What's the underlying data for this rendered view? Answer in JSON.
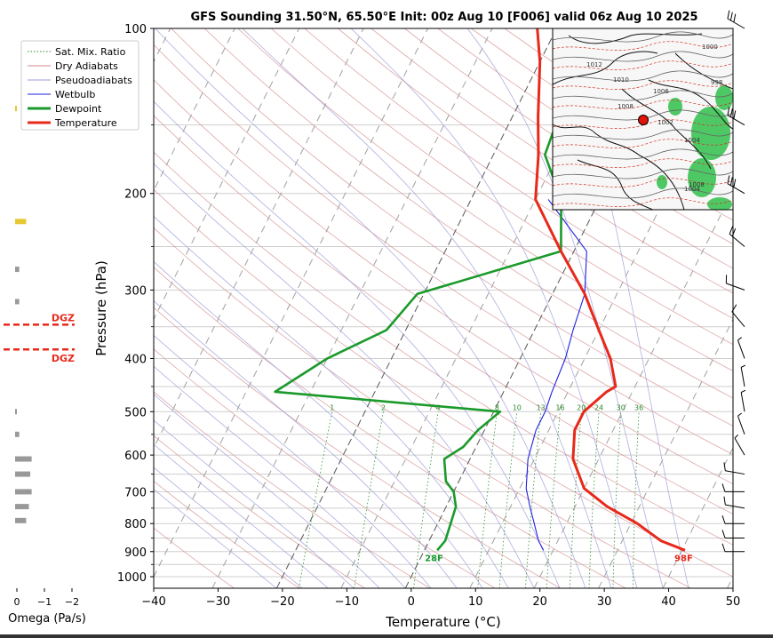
{
  "chart_data": {
    "type": "line",
    "title": "GFS Sounding 31.50°N, 65.50°E Init: 00z Aug 10 [F006] valid 06z Aug 10 2025",
    "xlabel": "Temperature (°C)",
    "ylabel": "Pressure (hPa)",
    "x_ticks": [
      -40,
      -30,
      -20,
      -10,
      0,
      10,
      20,
      30,
      40,
      50
    ],
    "x_tick_labels": [
      "−40",
      "−30",
      "−20",
      "−10",
      "0",
      "10",
      "20",
      "30",
      "40",
      "50"
    ],
    "y_ticks": [
      100,
      200,
      300,
      400,
      500,
      600,
      700,
      800,
      900,
      1000
    ],
    "y_tick_labels": [
      "100",
      "200",
      "300",
      "400",
      "500",
      "600",
      "700",
      "800",
      "900",
      "1000"
    ],
    "xlim": [
      -40,
      50
    ],
    "ylim": [
      1050,
      100
    ],
    "y_scale": "log",
    "grid": true,
    "legend_position": "top-left",
    "legend": [
      {
        "label": "Sat. Mix. Ratio",
        "color": "#2e8b2e",
        "style": "dotted"
      },
      {
        "label": "Dry Adiabats",
        "color": "#d48a8a",
        "style": "solid"
      },
      {
        "label": "Pseudoadiabats",
        "color": "#9a9ad8",
        "style": "solid"
      },
      {
        "label": "Wetbulb",
        "color": "#2020e0",
        "style": "solid"
      },
      {
        "label": "Dewpoint",
        "color": "#1a9a2a",
        "style": "thick"
      },
      {
        "label": "Temperature",
        "color": "#e8281a",
        "style": "thick"
      }
    ],
    "series": [
      {
        "name": "Temperature",
        "color": "#e8281a",
        "points": [
          [
            40.5,
            895
          ],
          [
            36,
            860
          ],
          [
            31,
            800
          ],
          [
            25,
            745
          ],
          [
            20,
            690
          ],
          [
            16,
            610
          ],
          [
            14,
            540
          ],
          [
            14,
            500
          ],
          [
            16,
            460
          ],
          [
            17,
            450
          ],
          [
            14,
            400
          ],
          [
            10,
            355
          ],
          [
            5,
            305
          ],
          [
            -2,
            255
          ],
          [
            -10,
            205
          ],
          [
            -13,
            170
          ],
          [
            -16,
            145
          ],
          [
            -20,
            115
          ],
          [
            -23,
            100
          ]
        ]
      },
      {
        "name": "Wetbulb",
        "color": "#2020e0",
        "points": [
          [
            18.5,
            895
          ],
          [
            17,
            860
          ],
          [
            15,
            800
          ],
          [
            13,
            745
          ],
          [
            11,
            690
          ],
          [
            9,
            610
          ],
          [
            8,
            540
          ],
          [
            8,
            500
          ],
          [
            7.5,
            460
          ],
          [
            7,
            400
          ],
          [
            6,
            355
          ],
          [
            5,
            305
          ],
          [
            2,
            255
          ],
          [
            -8,
            205
          ]
        ]
      },
      {
        "name": "Dewpoint",
        "color": "#1a9a2a",
        "points": [
          [
            2,
            895
          ],
          [
            2.5,
            860
          ],
          [
            2,
            800
          ],
          [
            1.5,
            745
          ],
          [
            0,
            700
          ],
          [
            -2,
            670
          ],
          [
            -4,
            610
          ],
          [
            -2,
            580
          ],
          [
            -1,
            540
          ],
          [
            1,
            500
          ],
          [
            -35.5,
            460
          ],
          [
            -30,
            400
          ],
          [
            -23,
            355
          ],
          [
            -21,
            305
          ],
          [
            -2,
            255
          ],
          [
            -6,
            205
          ],
          [
            -12,
            170
          ],
          [
            -13,
            140
          ],
          [
            -13,
            115
          ],
          [
            -14,
            100
          ]
        ]
      }
    ],
    "mixing_ratio_labels": [
      "1",
      "2",
      "4",
      "8",
      "10",
      "13",
      "16",
      "20",
      "24",
      "30",
      "36"
    ],
    "mixing_ratio_values": [
      1,
      2,
      4,
      8,
      10,
      13,
      16,
      20,
      24,
      30,
      36
    ],
    "surface_temp_label": "98F",
    "surface_dewpoint_label": "28F",
    "dgz_label": "DGZ",
    "dgz_pressures": [
      347,
      385
    ],
    "omega": {
      "xlabel": "Omega (Pa/s)",
      "ticks": [
        "0",
        "−1",
        "−2"
      ],
      "bars": [
        {
          "p": 225,
          "v": -0.4,
          "color": "#e6c830"
        },
        {
          "p": 275,
          "v": -0.15,
          "color": "#999999"
        },
        {
          "p": 315,
          "v": -0.15,
          "color": "#999999"
        },
        {
          "p": 500,
          "v": -0.05,
          "color": "#999999"
        },
        {
          "p": 550,
          "v": -0.15,
          "color": "#999999"
        },
        {
          "p": 610,
          "v": -0.6,
          "color": "#999999"
        },
        {
          "p": 650,
          "v": -0.55,
          "color": "#999999"
        },
        {
          "p": 700,
          "v": -0.6,
          "color": "#999999"
        },
        {
          "p": 745,
          "v": -0.5,
          "color": "#999999"
        },
        {
          "p": 790,
          "v": -0.4,
          "color": "#999999"
        },
        {
          "p": 140,
          "v": -0.05,
          "color": "#e6c830"
        }
      ]
    },
    "wind_barbs": [
      {
        "p": 100,
        "dir": 300,
        "kt": 30
      },
      {
        "p": 150,
        "dir": 300,
        "kt": 30
      },
      {
        "p": 200,
        "dir": 300,
        "kt": 30
      },
      {
        "p": 250,
        "dir": 310,
        "kt": 20
      },
      {
        "p": 300,
        "dir": 290,
        "kt": 10
      },
      {
        "p": 350,
        "dir": 320,
        "kt": 10
      },
      {
        "p": 400,
        "dir": 340,
        "kt": 5
      },
      {
        "p": 450,
        "dir": 350,
        "kt": 5
      },
      {
        "p": 500,
        "dir": 350,
        "kt": 5
      },
      {
        "p": 550,
        "dir": 340,
        "kt": 5
      },
      {
        "p": 600,
        "dir": 330,
        "kt": 5
      },
      {
        "p": 650,
        "dir": 280,
        "kt": 10
      },
      {
        "p": 700,
        "dir": 270,
        "kt": 10
      },
      {
        "p": 750,
        "dir": 280,
        "kt": 10
      },
      {
        "p": 800,
        "dir": 270,
        "kt": 10
      },
      {
        "p": 850,
        "dir": 270,
        "kt": 10
      },
      {
        "p": 900,
        "dir": 270,
        "kt": 10
      }
    ],
    "map_inset": {
      "point": {
        "lat": 31.5,
        "lon": 65.5
      },
      "isobar_labels": [
        "1012",
        "1010",
        "1008",
        "1006",
        "1004",
        "1002",
        "1000",
        "998",
        "1004",
        "1008"
      ]
    }
  },
  "colors": {
    "temperature": "#e8281a",
    "dewpoint": "#1a9a2a",
    "wetbulb": "#2020e0",
    "dry_adiabat": "#d48a8a",
    "pseudoadiabat": "#9a9ad8",
    "mixing_ratio": "#2e8b2e",
    "isotherm": "#a0a0a0",
    "dgz": "#e8281a"
  }
}
